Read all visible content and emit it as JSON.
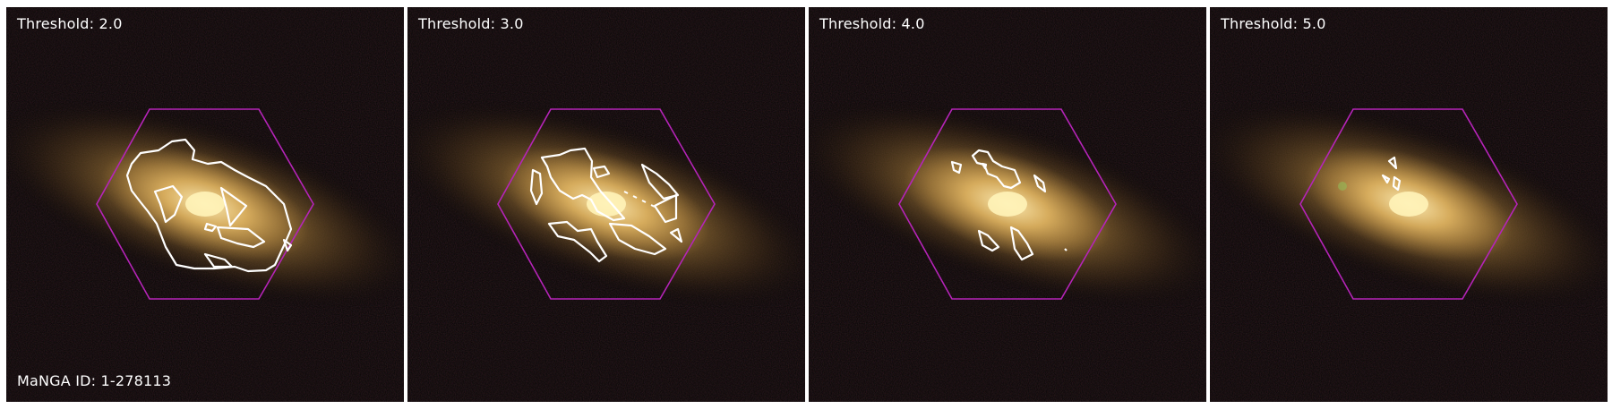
{
  "panels": [
    {
      "label": "Threshold: 2.0",
      "manga_id": "MaNGA ID: 1-278113"
    },
    {
      "label": "Threshold: 3.0"
    },
    {
      "label": "Threshold: 4.0"
    },
    {
      "label": "Threshold: 5.0"
    }
  ],
  "colors": {
    "hexagon": "#b524b8",
    "contour": "#ffffff",
    "galaxy_core": "#fff0b0",
    "galaxy_halo": "#c89a4a",
    "background": "#050403"
  }
}
